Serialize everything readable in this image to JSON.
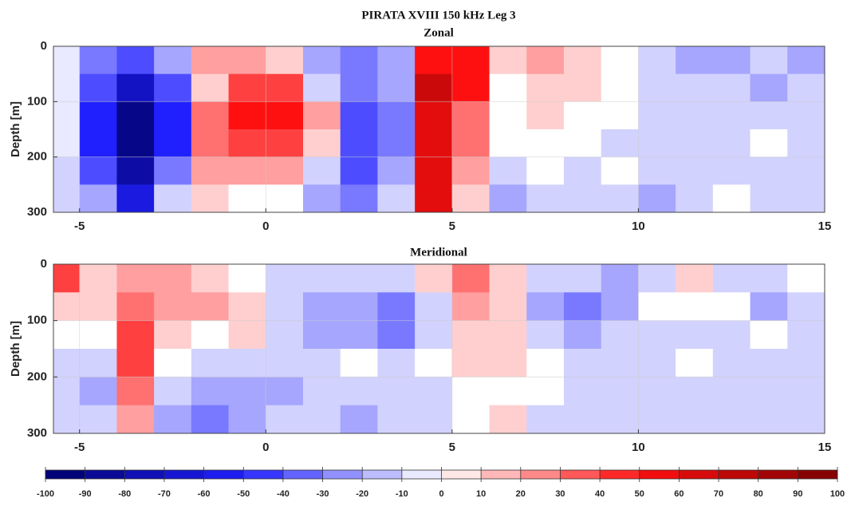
{
  "chart_data": {
    "type": "contour",
    "title": "PIRATA XVIII 150 kHz Leg 3",
    "ylabel": "Depth [m]",
    "x": [
      -5.5,
      -4.5,
      -3.5,
      -2.5,
      -1.5,
      -0.5,
      0.5,
      1.5,
      2.5,
      3.5,
      4.5,
      5.5,
      6.5,
      7.5,
      8.5,
      9.5,
      10.5,
      11.5,
      12.5,
      13.5,
      14.5
    ],
    "y": [
      25,
      75,
      125,
      175,
      225,
      275
    ],
    "xlim": [
      -5.7,
      15
    ],
    "xticks": [
      -5,
      0,
      5,
      10,
      15
    ],
    "ylim": [
      0,
      300
    ],
    "yticks": [
      0,
      100,
      200,
      300
    ],
    "y_reversed": true,
    "grid": true,
    "panels": [
      {
        "subtitle": "Zonal",
        "z": [
          [
            -5,
            -30,
            -40,
            -20,
            20,
            20,
            10,
            -20,
            -30,
            -20,
            50,
            50,
            10,
            20,
            10,
            0,
            -10,
            -20,
            -20,
            -10,
            -20
          ],
          [
            -5,
            -40,
            -70,
            -40,
            10,
            40,
            40,
            -10,
            -30,
            -20,
            70,
            50,
            0,
            10,
            10,
            0,
            -10,
            -10,
            -10,
            -20,
            -10
          ],
          [
            -5,
            -50,
            -90,
            -50,
            30,
            50,
            50,
            20,
            -40,
            -30,
            60,
            30,
            0,
            10,
            0,
            0,
            -10,
            -10,
            -10,
            -10,
            -10
          ],
          [
            -5,
            -50,
            -90,
            -50,
            30,
            40,
            40,
            10,
            -40,
            -30,
            60,
            30,
            0,
            0,
            0,
            -10,
            -10,
            -10,
            -10,
            0,
            -10
          ],
          [
            -10,
            -40,
            -80,
            -30,
            20,
            20,
            20,
            -10,
            -40,
            -20,
            60,
            20,
            -10,
            0,
            -10,
            0,
            -10,
            -10,
            -10,
            -10,
            -10
          ],
          [
            -10,
            -20,
            -60,
            -10,
            10,
            0,
            0,
            -20,
            -30,
            -10,
            60,
            10,
            -20,
            -10,
            -10,
            -10,
            -20,
            -10,
            0,
            -10,
            -10
          ]
        ]
      },
      {
        "subtitle": "Meridional",
        "z": [
          [
            40,
            10,
            20,
            20,
            10,
            0,
            -10,
            -10,
            -10,
            -10,
            10,
            30,
            10,
            -10,
            -10,
            -20,
            -10,
            10,
            -10,
            -10,
            0
          ],
          [
            10,
            10,
            30,
            20,
            20,
            10,
            -10,
            -20,
            -20,
            -30,
            -10,
            20,
            10,
            -20,
            -30,
            -20,
            0,
            0,
            0,
            -20,
            -10
          ],
          [
            0,
            0,
            40,
            10,
            0,
            10,
            -10,
            -20,
            -20,
            -30,
            -10,
            10,
            10,
            -10,
            -20,
            -10,
            -10,
            -10,
            -10,
            0,
            -10
          ],
          [
            -10,
            -10,
            40,
            0,
            -10,
            -10,
            -10,
            -10,
            0,
            -10,
            0,
            10,
            10,
            0,
            -10,
            -10,
            -10,
            0,
            -10,
            -10,
            -10
          ],
          [
            -10,
            -20,
            30,
            -10,
            -20,
            -20,
            -20,
            -10,
            -10,
            -10,
            -10,
            0,
            0,
            0,
            -10,
            -10,
            -10,
            -10,
            -10,
            -10,
            -10
          ],
          [
            -10,
            -10,
            20,
            -20,
            -30,
            -20,
            -10,
            -10,
            -20,
            -10,
            -10,
            0,
            10,
            -10,
            -10,
            -10,
            -10,
            -10,
            -10,
            -10,
            -10
          ]
        ]
      }
    ],
    "colorbar": {
      "lim": [
        -100,
        100
      ],
      "ticks": [
        -100,
        -90,
        -80,
        -70,
        -60,
        -50,
        -40,
        -30,
        -20,
        -10,
        0,
        10,
        20,
        30,
        40,
        50,
        60,
        70,
        80,
        90,
        100
      ],
      "colors": [
        "#00006a",
        "#2020ff",
        "#ffffff",
        "#ff1010",
        "#7a0000"
      ],
      "levels": 20
    }
  }
}
